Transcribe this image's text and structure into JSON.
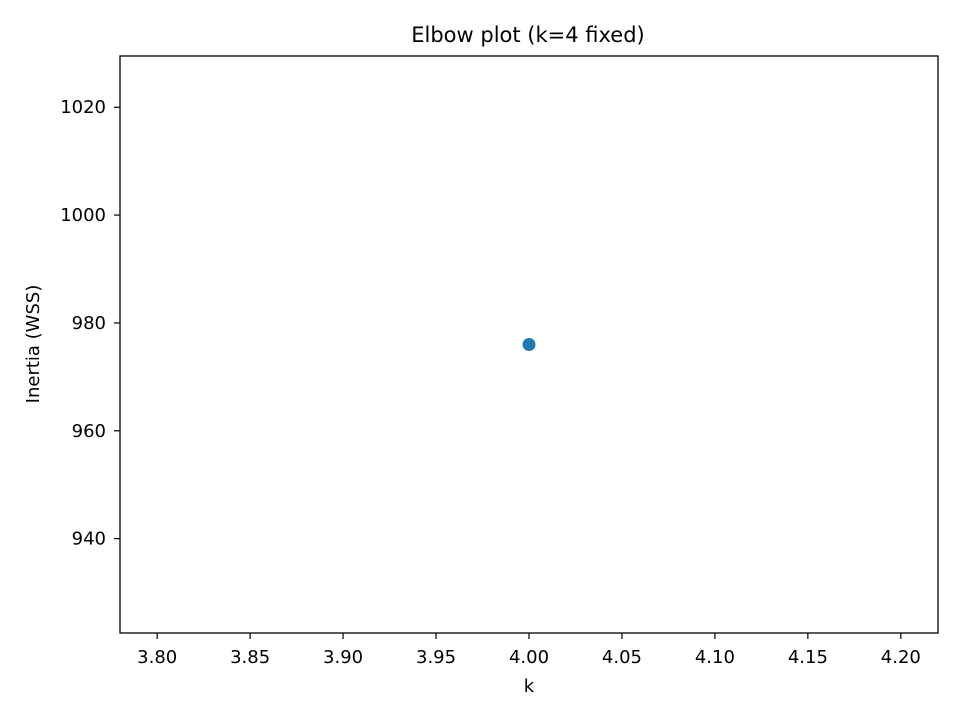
{
  "chart_data": {
    "type": "scatter",
    "title": "Elbow plot (k=4 fixed)",
    "xlabel": "k",
    "ylabel": "Inertia (WSS)",
    "xlim": [
      3.78,
      4.22
    ],
    "ylim": [
      922.5,
      1029.5
    ],
    "x_ticks": [
      3.8,
      3.85,
      3.9,
      3.95,
      4.0,
      4.05,
      4.1,
      4.15,
      4.2
    ],
    "x_tick_labels": [
      "3.80",
      "3.85",
      "3.90",
      "3.95",
      "4.00",
      "4.05",
      "4.10",
      "4.15",
      "4.20"
    ],
    "y_ticks": [
      940,
      960,
      980,
      1000,
      1020
    ],
    "y_tick_labels": [
      "940",
      "960",
      "980",
      "1000",
      "1020"
    ],
    "grid": false,
    "series": [
      {
        "x": [
          4.0
        ],
        "y": [
          976
        ],
        "color": "#1f77b4",
        "marker": "circle",
        "line": false
      }
    ]
  }
}
